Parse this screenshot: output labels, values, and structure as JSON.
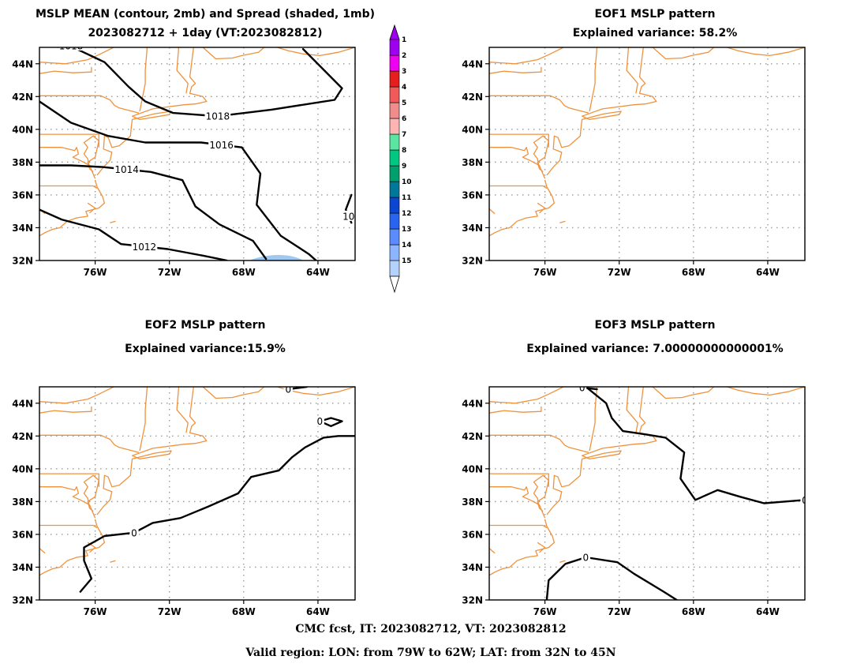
{
  "footer": {
    "line1": "CMC fcst, IT: 2023082712, VT: 2023082812",
    "line2": "Valid region: LON: from 79W to 62W; LAT: from 32N to 45N"
  },
  "colors": {
    "coast": "#f0923c",
    "contour": "#000000",
    "grid": "#9a9a9a",
    "spread_shade": "#a0c8f0"
  },
  "colorbar": {
    "labels": [
      "1",
      "2",
      "3",
      "4",
      "5",
      "6",
      "7",
      "8",
      "9",
      "10",
      "11",
      "12",
      "13",
      "14",
      "15"
    ],
    "colors": [
      "#b4d2ff",
      "#8cb4ff",
      "#5a8cff",
      "#2864f0",
      "#0a46d2",
      "#00789a",
      "#00a06e",
      "#00c882",
      "#5ae6a0",
      "#ffb4b4",
      "#f08c8c",
      "#f05a5a",
      "#e61e1e",
      "#f000f0",
      "#a000f0"
    ]
  },
  "chart_data": [
    {
      "type": "contour",
      "title": "MSLP MEAN (contour, 2mb) and Spread (shaded, 1mb)",
      "subtitle": "2023082712 + 1day (VT:2023082812)",
      "x_ticks": [
        "76W",
        "72W",
        "68W",
        "64W"
      ],
      "y_ticks": [
        "44N",
        "42N",
        "40N",
        "38N",
        "36N",
        "34N",
        "32N"
      ],
      "xlim": [
        -79,
        -62
      ],
      "ylim": [
        32,
        45
      ],
      "grid": true,
      "contour_labels": [
        "1018",
        "1018",
        "1016",
        "1014",
        "1012",
        "10"
      ],
      "contours": [
        {
          "level": 1018,
          "points": [
            [
              -79,
              45.15
            ],
            [
              -77,
              44.9
            ],
            [
              -75.5,
              44.1
            ],
            [
              -74.2,
              42.6
            ],
            [
              -73.3,
              41.7
            ],
            [
              -71.8,
              41.0
            ],
            [
              -69.4,
              40.8
            ],
            [
              -66.5,
              41.2
            ],
            [
              -63.1,
              41.8
            ],
            [
              -62.7,
              42.5
            ],
            [
              -64.8,
              44.9
            ]
          ]
        },
        {
          "level": 1016,
          "points": [
            [
              -79,
              41.7
            ],
            [
              -77.3,
              40.4
            ],
            [
              -75.3,
              39.6
            ],
            [
              -73.3,
              39.2
            ],
            [
              -70.3,
              39.2
            ],
            [
              -68.1,
              38.9
            ],
            [
              -67.1,
              37.3
            ],
            [
              -67.3,
              35.4
            ],
            [
              -66.0,
              33.5
            ],
            [
              -64.5,
              32.4
            ],
            [
              -64.1,
              32.0
            ]
          ]
        },
        {
          "level": 1014,
          "points": [
            [
              -79,
              37.8
            ],
            [
              -77.3,
              37.8
            ],
            [
              -75.6,
              37.7
            ],
            [
              -73.0,
              37.4
            ],
            [
              -71.3,
              36.9
            ],
            [
              -70.6,
              35.3
            ],
            [
              -69.3,
              34.2
            ],
            [
              -67.5,
              33.2
            ],
            [
              -66.8,
              32.1
            ]
          ]
        },
        {
          "level": 1012,
          "points": [
            [
              -79,
              35.1
            ],
            [
              -77.8,
              34.5
            ],
            [
              -75.8,
              33.9
            ],
            [
              -74.6,
              33.0
            ],
            [
              -72.1,
              32.7
            ],
            [
              -70.2,
              32.3
            ],
            [
              -68.9,
              32.0
            ]
          ]
        },
        {
          "level": 1010,
          "points": [
            [
              -62.2,
              36.0
            ],
            [
              -62.5,
              35.1
            ],
            [
              -62.2,
              34.3
            ]
          ]
        }
      ],
      "shading": [
        {
          "spread": 1,
          "points": [
            [
              -67.7,
              32
            ],
            [
              -66.9,
              32.4
            ],
            [
              -65.5,
              32.5
            ],
            [
              -64.8,
              32.0
            ]
          ]
        }
      ]
    },
    {
      "type": "contour",
      "title": "EOF1 MSLP pattern",
      "subtitle": "Explained variance: 58.2%",
      "x_ticks": [
        "76W",
        "72W",
        "68W",
        "64W"
      ],
      "y_ticks": [
        "44N",
        "42N",
        "40N",
        "38N",
        "36N",
        "34N",
        "32N"
      ],
      "xlim": [
        -79,
        -62
      ],
      "ylim": [
        32,
        45
      ],
      "grid": true,
      "contours": []
    },
    {
      "type": "contour",
      "title": "EOF2 MSLP pattern",
      "subtitle": "Explained variance:15.9%",
      "x_ticks": [
        "76W",
        "72W",
        "68W",
        "64W"
      ],
      "y_ticks": [
        "44N",
        "42N",
        "40N",
        "38N",
        "36N",
        "34N",
        "32N"
      ],
      "xlim": [
        -79,
        -62
      ],
      "ylim": [
        32,
        45
      ],
      "grid": true,
      "contour_labels": [
        "0",
        "0",
        "0"
      ],
      "contours": [
        {
          "level": 0,
          "points": [
            [
              -76.8,
              32.5
            ],
            [
              -76.2,
              33.3
            ],
            [
              -76.6,
              34.4
            ],
            [
              -76.6,
              35.2
            ],
            [
              -75.5,
              35.9
            ],
            [
              -73.9,
              36.1
            ],
            [
              -72.9,
              36.7
            ],
            [
              -71.4,
              37.0
            ],
            [
              -69.9,
              37.7
            ],
            [
              -68.3,
              38.5
            ],
            [
              -67.6,
              39.5
            ],
            [
              -66.1,
              39.9
            ],
            [
              -65.4,
              40.7
            ],
            [
              -64.7,
              41.3
            ],
            [
              -63.7,
              41.9
            ],
            [
              -62.9,
              42.0
            ],
            [
              -62.0,
              42.0
            ]
          ]
        },
        {
          "level": 0,
          "points": [
            [
              -63.9,
              42.9
            ],
            [
              -63.3,
              43.1
            ],
            [
              -62.7,
              42.9
            ],
            [
              -63.3,
              42.6
            ],
            [
              -63.9,
              42.9
            ]
          ]
        },
        {
          "level": 0,
          "points": [
            [
              -65.6,
              44.85
            ],
            [
              -64.6,
              45.0
            ]
          ]
        }
      ]
    },
    {
      "type": "contour",
      "title": "EOF3 MSLP pattern",
      "subtitle": "Explained variance: 7.00000000000001%",
      "x_ticks": [
        "76W",
        "72W",
        "68W",
        "64W"
      ],
      "y_ticks": [
        "44N",
        "42N",
        "40N",
        "38N",
        "36N",
        "34N",
        "32N"
      ],
      "xlim": [
        -79,
        -62
      ],
      "ylim": [
        32,
        45
      ],
      "grid": true,
      "contour_labels": [
        "0",
        "0",
        "0"
      ],
      "contours": [
        {
          "level": 0,
          "points": [
            [
              -73.8,
              45.0
            ],
            [
              -72.7,
              44.0
            ],
            [
              -72.4,
              43.1
            ],
            [
              -71.8,
              42.3
            ],
            [
              -70.6,
              42.1
            ],
            [
              -69.5,
              41.9
            ],
            [
              -68.5,
              41.0
            ],
            [
              -68.7,
              39.4
            ],
            [
              -67.9,
              38.1
            ],
            [
              -66.7,
              38.7
            ],
            [
              -65.5,
              38.3
            ],
            [
              -64.2,
              37.9
            ],
            [
              -63.1,
              38.0
            ],
            [
              -62.0,
              38.1
            ]
          ]
        },
        {
          "level": 0,
          "points": [
            [
              -75.9,
              32.0
            ],
            [
              -75.8,
              33.2
            ],
            [
              -74.9,
              34.2
            ],
            [
              -73.8,
              34.6
            ],
            [
              -72.1,
              34.3
            ],
            [
              -71.2,
              33.6
            ],
            [
              -69.6,
              32.5
            ],
            [
              -68.9,
              32.0
            ]
          ]
        },
        {
          "level": 0,
          "points": [
            [
              -74.0,
              44.95
            ],
            [
              -73.2,
              44.85
            ]
          ]
        }
      ]
    }
  ]
}
